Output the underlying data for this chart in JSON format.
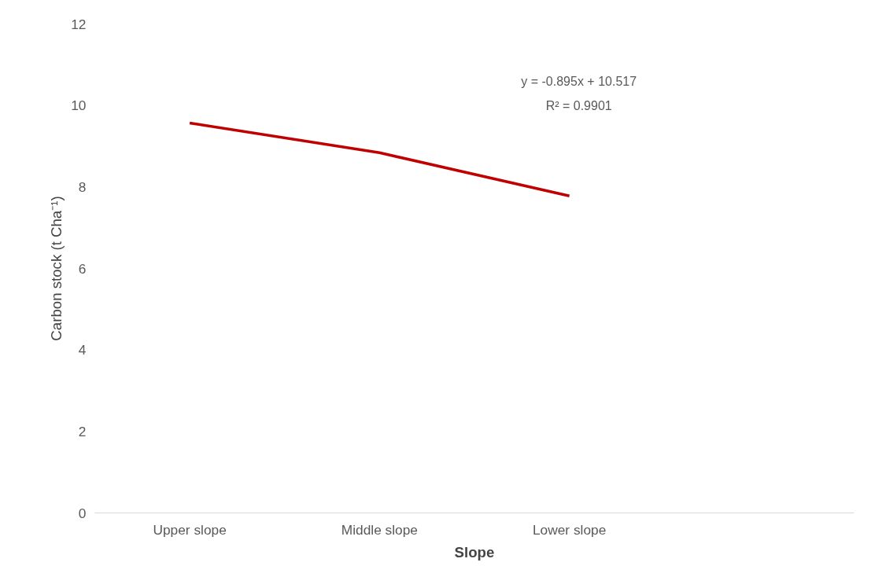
{
  "chart_data": {
    "type": "line",
    "xlabel": "Slope",
    "ylabel": "Carbon stock (t Cha⁻¹)",
    "categories": [
      "Upper slope",
      "Middle slope",
      "Lower slope",
      null
    ],
    "series": [
      {
        "color": "#c00000",
        "values": [
          9.57,
          8.84,
          7.78,
          null
        ]
      }
    ],
    "ylim": [
      0,
      12
    ],
    "yticks": [
      0,
      2,
      4,
      6,
      8,
      10,
      12
    ],
    "grid": false,
    "marker": "none",
    "line_style": "solid",
    "annotations": [
      "y = -0.895x + 10.517",
      "R² = 0.9901"
    ]
  }
}
